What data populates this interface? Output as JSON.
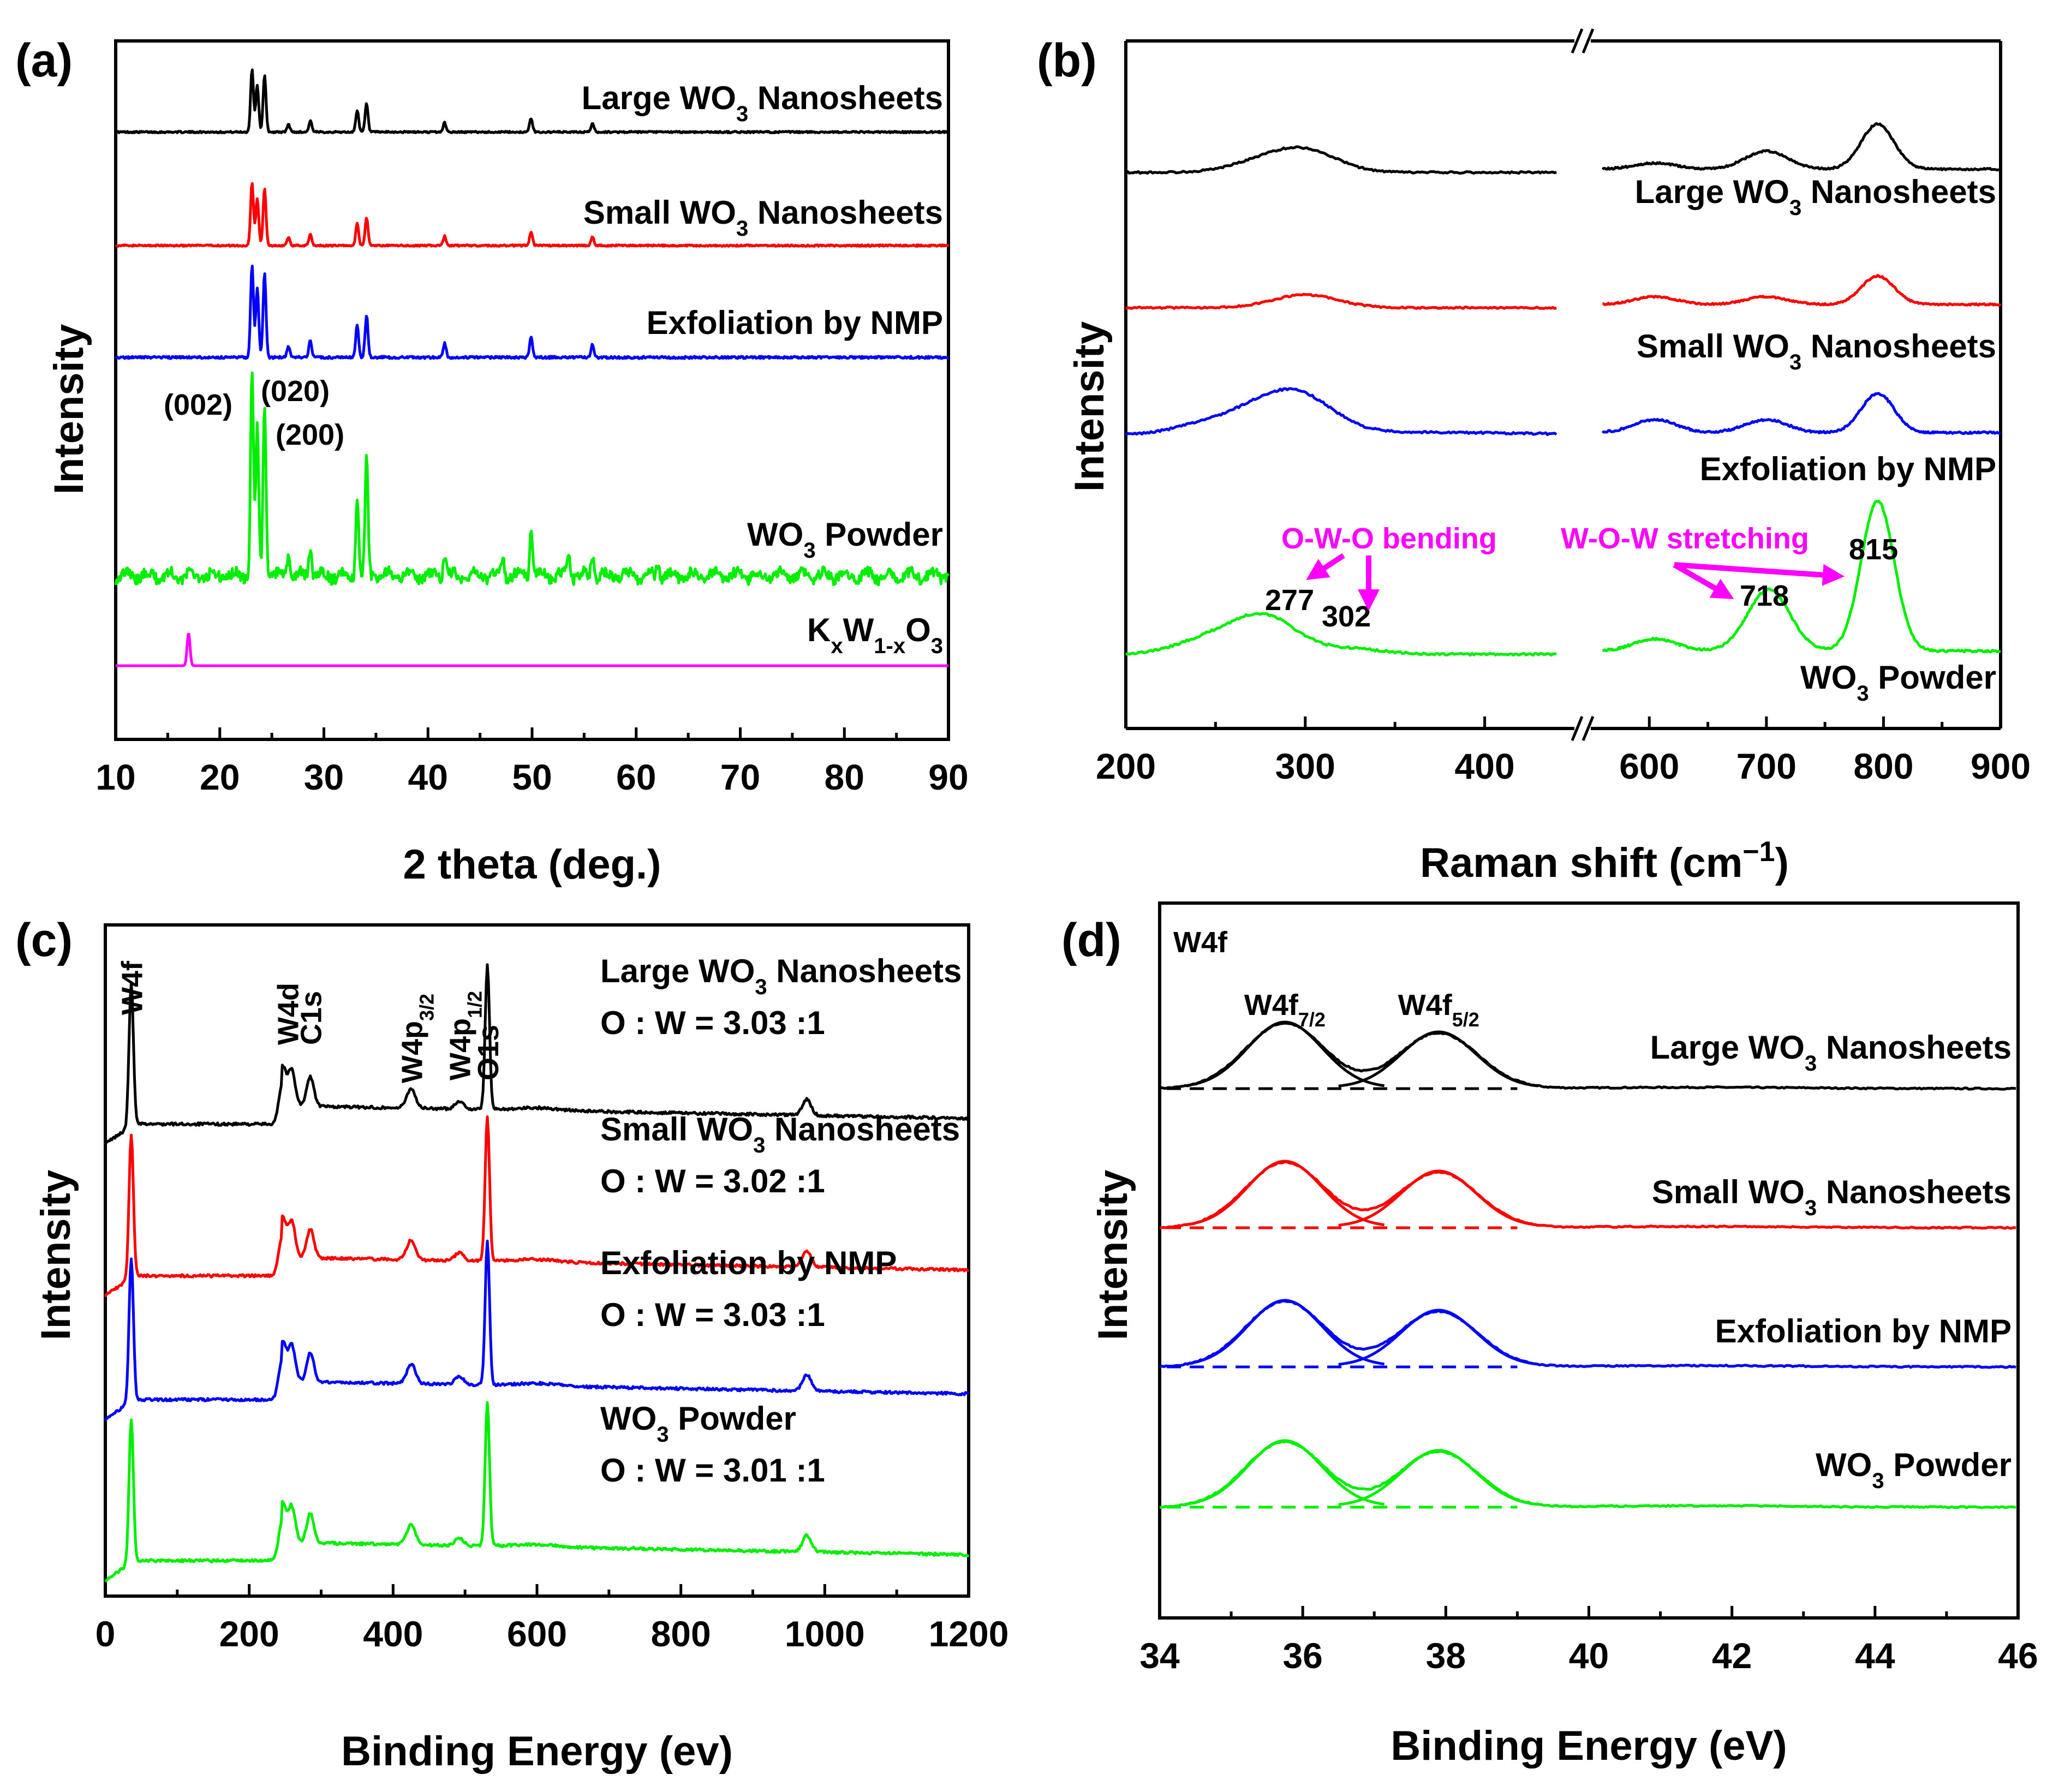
{
  "chart_data": [
    {
      "panel": "(a)",
      "type": "line",
      "xlabel": "2 theta (deg.)",
      "ylabel": "Intensity",
      "xlim": [
        10,
        90
      ],
      "xticks": [
        10,
        20,
        30,
        40,
        50,
        60,
        70,
        80,
        90
      ],
      "annotations": [
        "(002)",
        "(020)",
        "(200)"
      ],
      "series": [
        {
          "name": "Large WO3 Nanosheets",
          "label_main": "Large WO",
          "label_sub": "3",
          "label_tail": " Nanosheets",
          "color": "#000000",
          "peaks": [
            [
              23.1,
              1.0
            ],
            [
              23.6,
              0.75
            ],
            [
              24.3,
              0.9
            ],
            [
              26.6,
              0.12
            ],
            [
              28.7,
              0.18
            ],
            [
              33.2,
              0.35
            ],
            [
              34.1,
              0.45
            ],
            [
              41.6,
              0.15
            ],
            [
              49.9,
              0.22
            ],
            [
              55.8,
              0.14
            ]
          ]
        },
        {
          "name": "Small WO3 Nanosheets",
          "label_main": "Small WO",
          "label_sub": "3",
          "label_tail": " Nanosheets",
          "color": "#ff0000",
          "peaks": [
            [
              23.1,
              1.0
            ],
            [
              23.6,
              0.75
            ],
            [
              24.3,
              0.9
            ],
            [
              26.6,
              0.12
            ],
            [
              28.7,
              0.18
            ],
            [
              33.2,
              0.35
            ],
            [
              34.1,
              0.45
            ],
            [
              41.6,
              0.15
            ],
            [
              49.9,
              0.22
            ],
            [
              55.8,
              0.14
            ]
          ]
        },
        {
          "name": "Exfoliation by NMP",
          "label_main": "Exfoliation by NMP",
          "label_sub": "",
          "label_tail": "",
          "color": "#0000ff",
          "peaks": [
            [
              23.1,
              1.0
            ],
            [
              23.6,
              0.75
            ],
            [
              24.3,
              0.9
            ],
            [
              26.6,
              0.12
            ],
            [
              28.7,
              0.18
            ],
            [
              33.2,
              0.35
            ],
            [
              34.1,
              0.45
            ],
            [
              41.6,
              0.15
            ],
            [
              49.9,
              0.22
            ],
            [
              55.8,
              0.14
            ]
          ]
        },
        {
          "name": "WO3 Powder",
          "label_main": "WO",
          "label_sub": "3",
          "label_tail": " Powder",
          "color": "#00ee00",
          "peaks": [
            [
              23.1,
              1.0
            ],
            [
              23.6,
              0.72
            ],
            [
              24.3,
              0.85
            ],
            [
              26.6,
              0.12
            ],
            [
              28.7,
              0.14
            ],
            [
              33.2,
              0.4
            ],
            [
              34.1,
              0.55
            ],
            [
              41.6,
              0.12
            ],
            [
              47.2,
              0.08
            ],
            [
              49.9,
              0.22
            ],
            [
              53.5,
              0.1
            ],
            [
              55.8,
              0.12
            ],
            [
              62.1,
              0.07
            ]
          ]
        },
        {
          "name": "KxW1-xO3",
          "label_main": "K",
          "label_sub": "x",
          "label_tail": "W",
          "label_sub2": "1-x",
          "label_tail2": "O",
          "label_sub3": "3",
          "color": "#ff00ff",
          "peaks": [
            [
              17.0,
              1.0
            ]
          ]
        }
      ]
    },
    {
      "panel": "(b)",
      "type": "line",
      "xlabel": "Raman shift (cm",
      "xlabel_sup": "−1",
      "xlabel_tail": ")",
      "ylabel": "Intensity",
      "xlim": [
        200,
        900
      ],
      "axis_break": [
        450,
        550
      ],
      "xticks": [
        200,
        300,
        400,
        600,
        700,
        800,
        900
      ],
      "annotations": {
        "bending": "O-W-O bending",
        "stretching": "W-O-W stretching",
        "p277": "277",
        "p302": "302",
        "p718": "718",
        "p815": "815"
      },
      "series": [
        {
          "name": "Large WO3 Nanosheets",
          "label_main": "Large WO",
          "label_sub": "3",
          "label_tail": " Nanosheets",
          "color": "#000000",
          "peaks": [
            [
              275,
              0.15
            ],
            [
              300,
              0.35
            ],
            [
              605,
              0.1
            ],
            [
              700,
              0.3
            ],
            [
              795,
              0.75
            ]
          ]
        },
        {
          "name": "Small WO3 Nanosheets",
          "label_main": "Small WO",
          "label_sub": "3",
          "label_tail": " Nanosheets",
          "color": "#ff0000",
          "peaks": [
            [
              300,
              0.25
            ],
            [
              605,
              0.15
            ],
            [
              700,
              0.15
            ],
            [
              795,
              0.55
            ]
          ]
        },
        {
          "name": "Exfoliation by NMP",
          "label_main": "Exfoliation by NMP",
          "label_sub": "",
          "label_tail": "",
          "color": "#0000ff",
          "peaks": [
            [
              245,
              0.15
            ],
            [
              277,
              0.35
            ],
            [
              300,
              0.45
            ],
            [
              605,
              0.2
            ],
            [
              700,
              0.2
            ],
            [
              795,
              0.6
            ]
          ]
        },
        {
          "name": "WO3 Powder",
          "label_main": "WO",
          "label_sub": "3",
          "label_tail": " Powder",
          "color": "#00ee00",
          "peaks": [
            [
              245,
              0.2
            ],
            [
              277,
              0.55
            ],
            [
              325,
              0.08
            ],
            [
              605,
              0.18
            ],
            [
              702,
              0.9
            ],
            [
              795,
              2.2
            ]
          ]
        }
      ]
    },
    {
      "panel": "(c)",
      "type": "line",
      "xlabel": "Binding Energy (ev)",
      "ylabel": "Intensity",
      "xlim": [
        0,
        1200
      ],
      "xticks": [
        0,
        200,
        400,
        600,
        800,
        1000,
        1200
      ],
      "peak_labels": [
        {
          "text": "W4f",
          "x": 36
        },
        {
          "text": "W4d",
          "x": 253
        },
        {
          "text": "C1s",
          "x": 285
        },
        {
          "text": "W4p",
          "sub": "3/2",
          "x": 425
        },
        {
          "text": "W4p",
          "sub": "1/2",
          "x": 492
        },
        {
          "text": "O1s",
          "x": 531
        }
      ],
      "series": [
        {
          "name": "Large WO3 Nanosheets",
          "label_main": "Large WO",
          "label_sub": "3",
          "label_tail": " Nanosheets",
          "ratio": "O : W = 3.03 :1",
          "color": "#000000"
        },
        {
          "name": "Small WO3 Nanosheets",
          "label_main": "Small WO",
          "label_sub": "3",
          "label_tail": " Nanosheets",
          "ratio": "O : W = 3.02 :1",
          "color": "#ff0000"
        },
        {
          "name": "Exfoliation by NMP",
          "label_main": "Exfoliation by NMP",
          "label_sub": "",
          "label_tail": "",
          "ratio": "O : W = 3.03 :1",
          "color": "#0000ff"
        },
        {
          "name": "WO3 Powder",
          "label_main": "WO",
          "label_sub": "3",
          "label_tail": " Powder",
          "ratio": "O : W = 3.01 :1",
          "color": "#00ee00"
        }
      ]
    },
    {
      "panel": "(d)",
      "type": "line",
      "title": "W4f",
      "xlabel": "Binding Energy (eV)",
      "ylabel": "Intensity",
      "xlim": [
        34,
        46
      ],
      "xticks": [
        34,
        36,
        38,
        40,
        42,
        44,
        46
      ],
      "peak_labels": [
        {
          "text": "W4f",
          "sub": "7/2",
          "x": 35.75
        },
        {
          "text": "W4f",
          "sub": "5/2",
          "x": 37.9
        }
      ],
      "peaks": [
        [
          35.75,
          1.0
        ],
        [
          37.9,
          0.85
        ]
      ],
      "series": [
        {
          "name": "Large WO3 Nanosheets",
          "label_main": "Large WO",
          "label_sub": "3",
          "label_tail": " Nanosheets",
          "color": "#000000"
        },
        {
          "name": "Small WO3 Nanosheets",
          "label_main": "Small WO",
          "label_sub": "3",
          "label_tail": " Nanosheets",
          "color": "#ff0000"
        },
        {
          "name": "Exfoliation by NMP",
          "label_main": "Exfoliation by NMP",
          "label_sub": "",
          "label_tail": "",
          "color": "#0000ff"
        },
        {
          "name": "WO3 Powder",
          "label_main": "WO",
          "label_sub": "3",
          "label_tail": " Powder",
          "color": "#00ee00"
        }
      ]
    }
  ]
}
